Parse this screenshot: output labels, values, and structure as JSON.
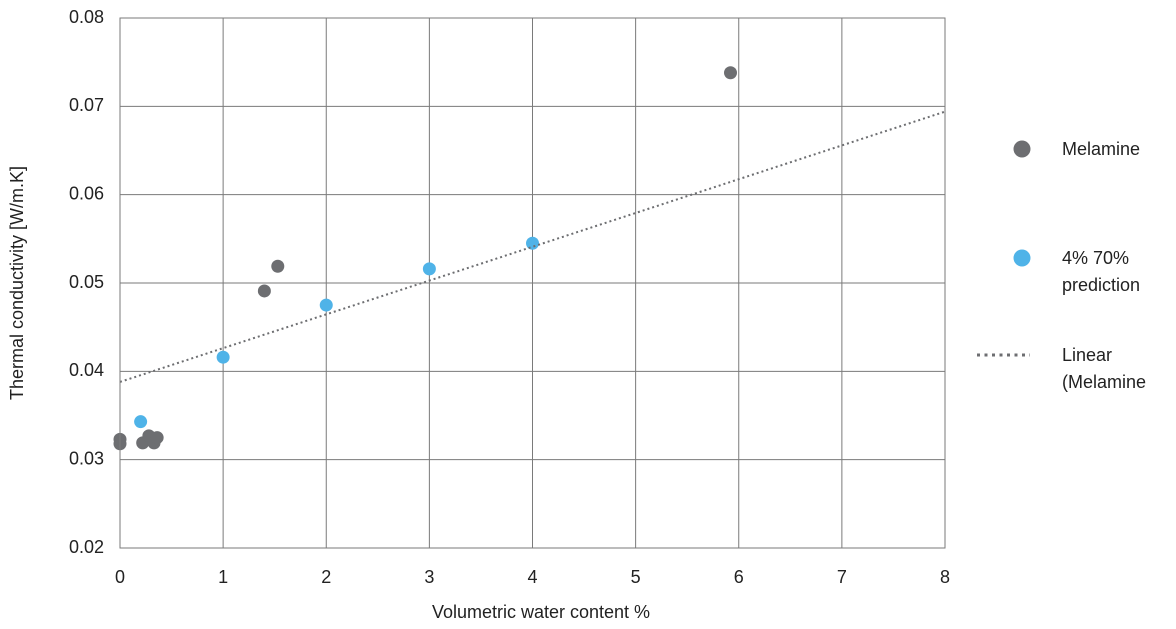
{
  "chart_data": {
    "type": "scatter",
    "xlabel": "Volumetric water content %",
    "ylabel": "Thermal conductivity [W/m.K]",
    "xlim": [
      0,
      8
    ],
    "xticks": [
      0,
      1,
      2,
      3,
      4,
      5,
      6,
      7,
      8
    ],
    "ylim": [
      0.02,
      0.08
    ],
    "yticks": [
      0.02,
      0.03,
      0.04,
      0.05,
      0.06,
      0.07,
      0.08
    ],
    "grid": true,
    "legend": "right",
    "series": [
      {
        "name": "Melamine",
        "color": "#6d6e71",
        "mode": "markers",
        "x": [
          0,
          0,
          0.22,
          0.28,
          0.33,
          0.36,
          1.4,
          1.53,
          5.92
        ],
        "values": [
          0.0323,
          0.0318,
          0.0319,
          0.0327,
          0.0319,
          0.0325,
          0.0491,
          0.0519,
          0.0738
        ]
      },
      {
        "name": "4% 70% prediction",
        "color": "#4fb3e8",
        "mode": "markers",
        "x": [
          0.2,
          1,
          2,
          3,
          4
        ],
        "values": [
          0.0343,
          0.0416,
          0.0475,
          0.0516,
          0.0545
        ]
      },
      {
        "name": "Linear (Melamine",
        "color": "#6d6e71",
        "mode": "dotted-line",
        "x": [
          0,
          8
        ],
        "values": [
          0.0388,
          0.0694
        ]
      }
    ]
  }
}
